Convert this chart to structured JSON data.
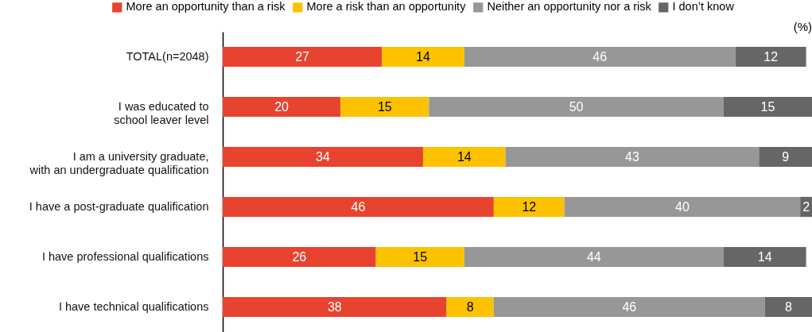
{
  "chart_data": {
    "type": "bar",
    "orientation": "horizontal",
    "stacked": true,
    "data_labels": true,
    "legend": "top",
    "categories": [
      "TOTAL(n=2048)",
      "I was educated to\nschool leaver level",
      "I am a university graduate,\nwith an undergraduate qualification",
      "I have a post-graduate qualification",
      "I have professional qualifications",
      "I have technical qualifications"
    ],
    "series": [
      {
        "name": "More an opportunity than a risk",
        "color": "#e8432f",
        "values": [
          27,
          20,
          34,
          46,
          26,
          38
        ]
      },
      {
        "name": "More a risk than an opportunity",
        "color": "#fcc200",
        "values": [
          14,
          15,
          14,
          12,
          15,
          8
        ]
      },
      {
        "name": "Neither an opportunity nor a risk",
        "color": "#979797",
        "values": [
          46,
          50,
          43,
          40,
          44,
          46
        ]
      },
      {
        "name": "I don’t know",
        "color": "#666666",
        "values": [
          12,
          15,
          9,
          2,
          14,
          8
        ]
      }
    ],
    "annotations": [
      "(%)"
    ]
  }
}
